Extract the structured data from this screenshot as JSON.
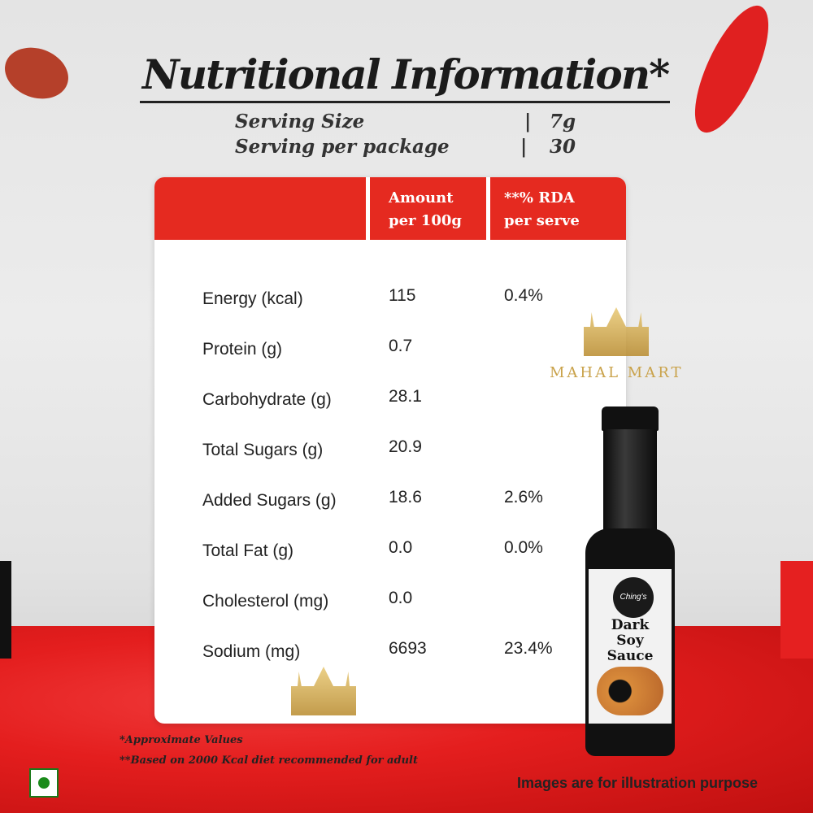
{
  "title": "Nutritional Information*",
  "serving": [
    {
      "label": "Serving Size",
      "value": "7g"
    },
    {
      "label": "Serving per package",
      "value": "30"
    }
  ],
  "table": {
    "headers": [
      "Amount per 100g",
      "**% RDA per serve"
    ],
    "header_lines": [
      [
        "Amount",
        "per 100g"
      ],
      [
        "**% RDA",
        "per serve"
      ]
    ],
    "rows": [
      {
        "nutrient": "Energy (kcal)",
        "amount": "115",
        "rda": "0.4%"
      },
      {
        "nutrient": "Protein (g)",
        "amount": "0.7",
        "rda": ""
      },
      {
        "nutrient": "Carbohydrate (g)",
        "amount": "28.1",
        "rda": ""
      },
      {
        "nutrient": "Total Sugars (g)",
        "amount": "20.9",
        "rda": ""
      },
      {
        "nutrient": "Added Sugars (g)",
        "amount": "18.6",
        "rda": "2.6%"
      },
      {
        "nutrient": "Total Fat (g)",
        "amount": "0.0",
        "rda": "0.0%"
      },
      {
        "nutrient": "Cholesterol (mg)",
        "amount": "0.0",
        "rda": ""
      },
      {
        "nutrient": "Sodium (mg)",
        "amount": "6693",
        "rda": "23.4%"
      }
    ]
  },
  "footnotes": [
    "*Approximate Values",
    "**Based on 2000 Kcal diet recommended for adult"
  ],
  "disclaimer": "Images are for illustration purpose",
  "watermark": "MAHAL MART",
  "product": {
    "brand": "Ching's",
    "name_lines": [
      "Dark",
      "Soy",
      "Sauce"
    ]
  },
  "colors": {
    "accent": "#e52a20",
    "veg_mark": "#1a8a1a"
  }
}
